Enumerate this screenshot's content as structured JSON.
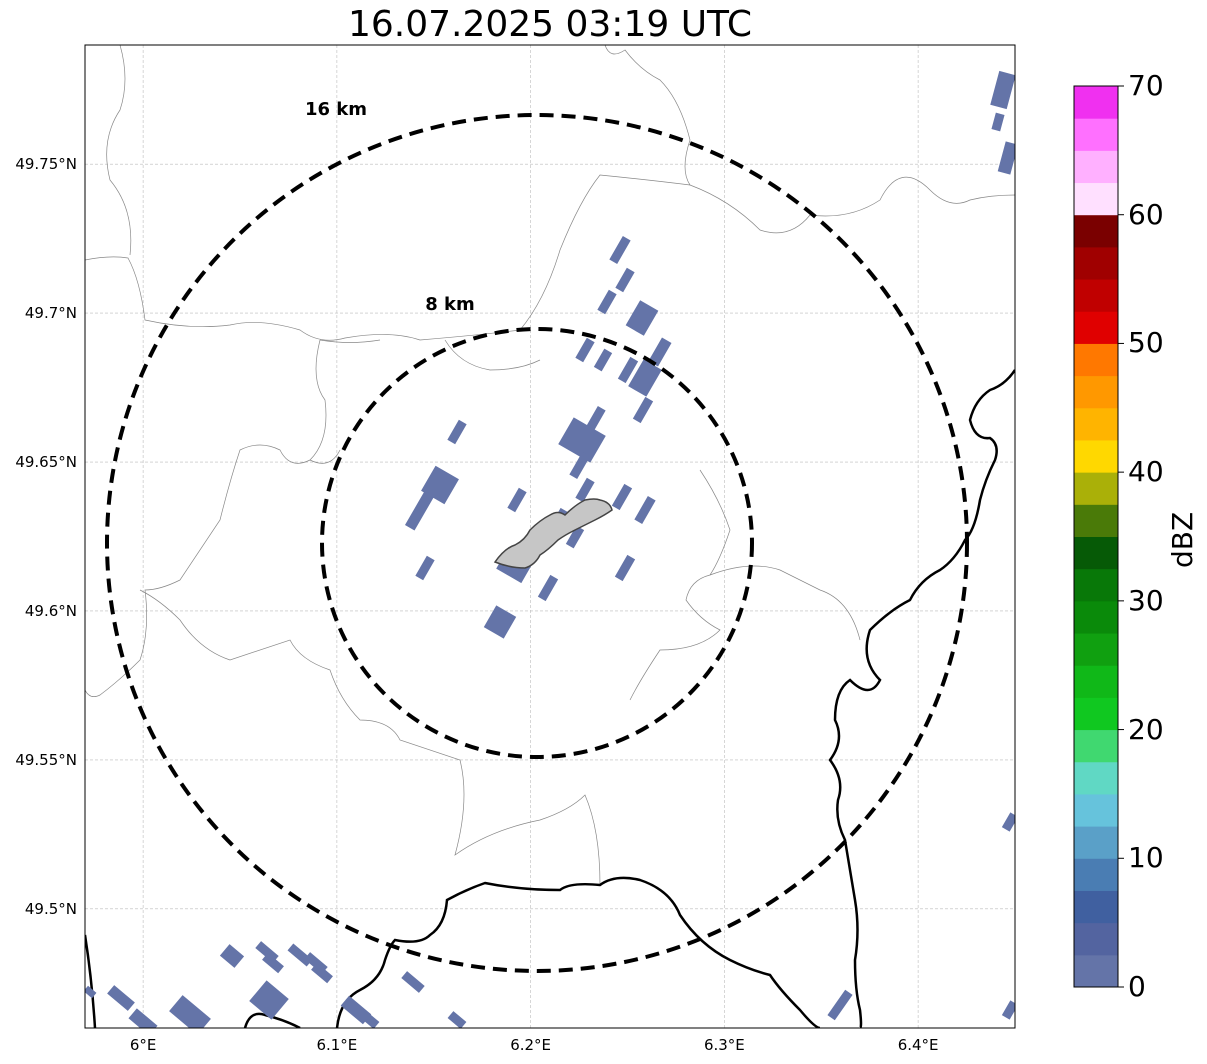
{
  "title": "16.07.2025 03:19 UTC",
  "map": {
    "lon_range": [
      5.97,
      6.45
    ],
    "lat_range": [
      49.46,
      49.79
    ],
    "lat_ticks": [
      {
        "value": 49.75,
        "label": "49.75°N"
      },
      {
        "value": 49.7,
        "label": "49.7°N"
      },
      {
        "value": 49.65,
        "label": "49.65°N"
      },
      {
        "value": 49.6,
        "label": "49.6°N"
      },
      {
        "value": 49.55,
        "label": "49.55°N"
      },
      {
        "value": 49.5,
        "label": "49.5°N"
      }
    ],
    "lon_ticks": [
      {
        "value": 6.0,
        "label": "6°E"
      },
      {
        "value": 6.1,
        "label": "6.1°E"
      },
      {
        "value": 6.2,
        "label": "6.2°E"
      },
      {
        "value": 6.3,
        "label": "6.3°E"
      },
      {
        "value": 6.4,
        "label": "6.4°E"
      }
    ],
    "gridlines": true,
    "range_rings": [
      {
        "label": "16 km",
        "radius_km": 16
      },
      {
        "label": "8 km",
        "radius_km": 8
      }
    ],
    "center": {
      "lon": 6.203,
      "lat": 49.623
    }
  },
  "colorbar": {
    "label": "dBZ",
    "range": [
      0,
      70
    ],
    "tick_labels": [
      "0",
      "10",
      "20",
      "30",
      "40",
      "50",
      "60",
      "70"
    ],
    "colors": [
      "#6474a8",
      "#5364a0",
      "#4060a0",
      "#4a7db3",
      "#5aa0c8",
      "#66c3dc",
      "#60d8c4",
      "#40d870",
      "#10c820",
      "#10b818",
      "#10a010",
      "#0a8a0a",
      "#087808",
      "#065a06",
      "#4a7a08",
      "#aab008",
      "#ffd800",
      "#ffb400",
      "#ff9800",
      "#ff7800",
      "#e00000",
      "#c00000",
      "#a00000",
      "#7a0000",
      "#ffe0ff",
      "#ffb0ff",
      "#ff70ff",
      "#f030f0"
    ]
  }
}
